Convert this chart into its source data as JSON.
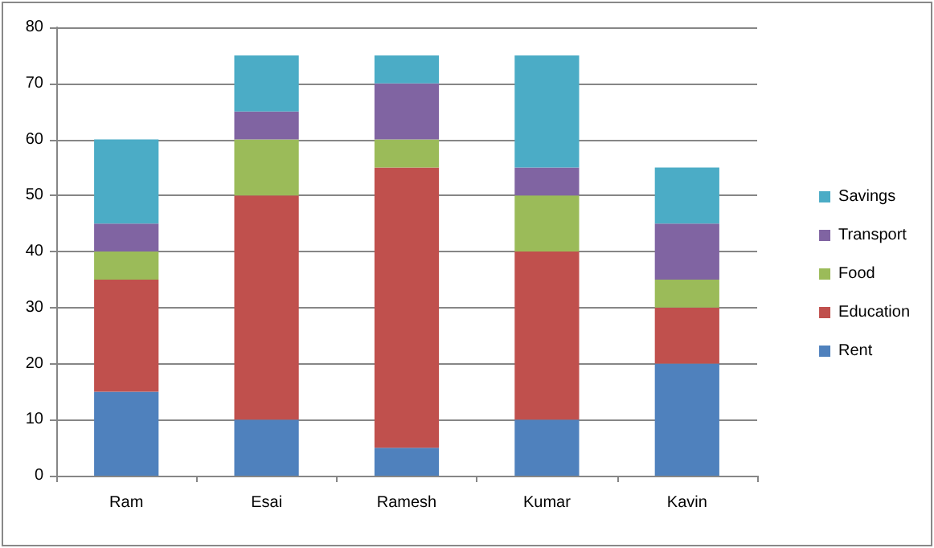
{
  "chart_data": {
    "type": "bar",
    "stacked": true,
    "categories": [
      "Ram",
      "Esai",
      "Ramesh",
      "Kumar",
      "Kavin"
    ],
    "series": [
      {
        "name": "Rent",
        "color": "#4f81bd",
        "values": [
          15,
          10,
          5,
          10,
          20
        ]
      },
      {
        "name": "Education",
        "color": "#c0504d",
        "values": [
          20,
          40,
          50,
          30,
          10
        ]
      },
      {
        "name": "Food",
        "color": "#9bbb59",
        "values": [
          5,
          10,
          5,
          10,
          5
        ]
      },
      {
        "name": "Transport",
        "color": "#8064a2",
        "values": [
          5,
          5,
          10,
          5,
          10
        ]
      },
      {
        "name": "Savings",
        "color": "#4bacc6",
        "values": [
          15,
          10,
          5,
          20,
          10
        ]
      }
    ],
    "ylim": [
      0,
      80
    ],
    "yticks": [
      0,
      10,
      20,
      30,
      40,
      50,
      60,
      70,
      80
    ],
    "grid": "y",
    "legend": "right"
  }
}
